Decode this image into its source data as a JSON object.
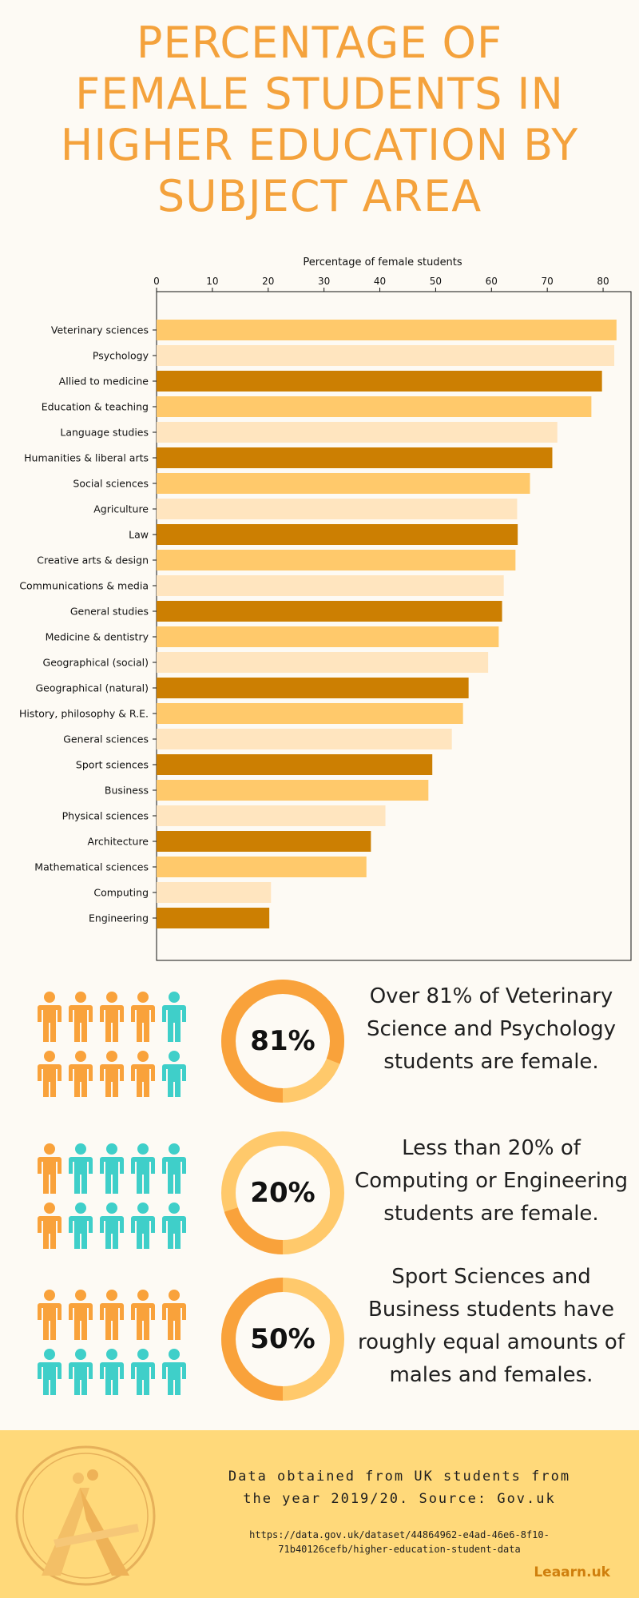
{
  "title_lines": [
    "PERCENTAGE OF",
    "FEMALE STUDENTS IN",
    "HIGHER EDUCATION BY",
    "SUBJECT AREA"
  ],
  "chart_data": {
    "type": "bar",
    "orientation": "horizontal",
    "xlabel": "Percentage of female students",
    "xlim": [
      0,
      85
    ],
    "xticks": [
      0,
      10,
      20,
      30,
      40,
      50,
      60,
      70,
      80
    ],
    "grid": false,
    "categories": [
      "Veterinary sciences",
      "Psychology",
      "Allied to medicine",
      "Education & teaching",
      "Language studies",
      "Humanities & liberal arts",
      "Social sciences",
      "Agriculture",
      "Law",
      "Creative arts & design",
      "Communications & media",
      "General studies",
      "Medicine & dentistry",
      "Geographical (social)",
      "Geographical (natural)",
      "History, philosophy & R.E.",
      "General sciences",
      "Sport sciences",
      "Business",
      "Physical sciences",
      "Architecture",
      "Mathematical sciences",
      "Computing",
      "Engineering"
    ],
    "values": [
      82.4,
      82.0,
      79.8,
      77.9,
      71.8,
      70.9,
      66.9,
      64.6,
      64.7,
      64.3,
      62.2,
      61.9,
      61.3,
      59.4,
      55.9,
      54.9,
      52.9,
      49.4,
      48.7,
      41.0,
      38.4,
      37.6,
      20.5,
      20.2
    ],
    "colors": [
      "#ffc96b",
      "#ffe5bf",
      "#cc7f02"
    ]
  },
  "stats": [
    {
      "percent": "81%",
      "text_lines": [
        "Over 81% of Veterinary",
        "Science and Psychology",
        "students are female."
      ],
      "fraction": 0.81,
      "people": [
        "f",
        "f",
        "f",
        "f",
        "m",
        "f",
        "f",
        "f",
        "f",
        "m"
      ]
    },
    {
      "percent": "20%",
      "text_lines": [
        "Less than 20% of",
        "Computing or Engineering",
        "students are female."
      ],
      "fraction": 0.2,
      "people": [
        "f",
        "m",
        "m",
        "m",
        "m",
        "f",
        "m",
        "m",
        "m",
        "m"
      ]
    },
    {
      "percent": "50%",
      "text_lines": [
        "Sport Sciences and",
        "Business students have",
        "roughly equal amounts of",
        "males and females."
      ],
      "fraction": 0.5,
      "people": [
        "f",
        "f",
        "f",
        "f",
        "f",
        "m",
        "m",
        "m",
        "m",
        "m"
      ]
    }
  ],
  "colors": {
    "female": "#f9a23b",
    "male": "#3fcfc9",
    "ring_track": "#ffc96b",
    "ring_fill": "#f9a23b"
  },
  "footer": {
    "source_lines": [
      "Data obtained from UK students from",
      "the year 2019/20. Source: Gov.uk"
    ],
    "url_lines": [
      "https://data.gov.uk/dataset/44864962-e4ad-46e6-8f10-",
      "71b40126cefb/higher-education-student-data"
    ],
    "brand": "Leaarn.uk"
  }
}
